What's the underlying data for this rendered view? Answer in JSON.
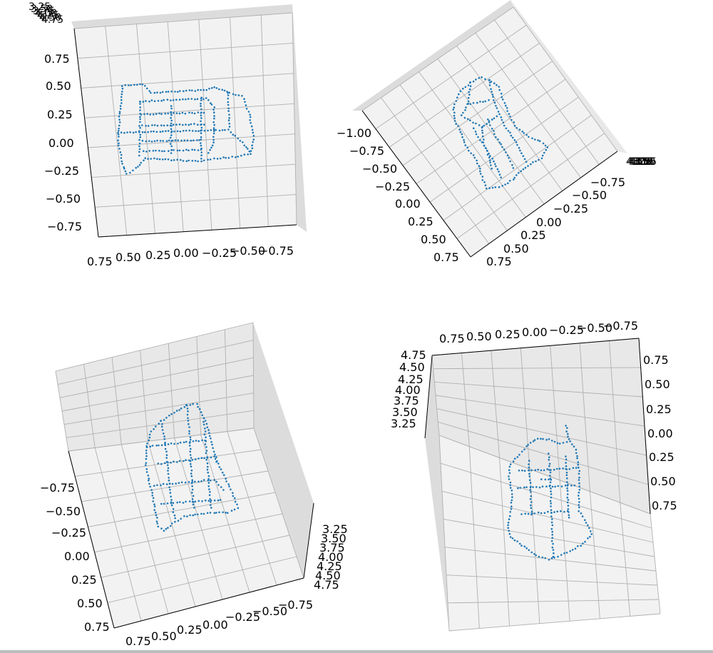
{
  "chart_data": [
    {
      "type": "scatter",
      "view": "top-left",
      "x_ticks": [
        "0.75",
        "0.50",
        "0.25",
        "0.00",
        "−0.25",
        "−0.50",
        "−0.75"
      ],
      "y_ticks": [
        "0.75",
        "0.50",
        "0.25",
        "0.00",
        "−0.25",
        "−0.50",
        "−0.75"
      ],
      "z_ticks": [
        "3.25",
        "3.50",
        "3.75",
        "4.00",
        "4.25",
        "4.50",
        "4.75"
      ],
      "grid": true,
      "color": "#1f77b4"
    },
    {
      "type": "scatter",
      "view": "top-right",
      "left_ticks": [
        "−1.00",
        "−0.75",
        "−0.50",
        "−0.25",
        "0.00",
        "0.25",
        "0.50",
        "0.75"
      ],
      "right_ticks": [
        "−0.75",
        "−0.50",
        "−0.25",
        "0.00",
        "0.25",
        "0.50",
        "0.75"
      ],
      "z_ticks": [
        "4.75",
        "4.50",
        "4.25",
        "4.00",
        "3.75",
        "3.50",
        "3.25"
      ],
      "grid": true,
      "color": "#1f77b4"
    },
    {
      "type": "scatter",
      "view": "bottom-left",
      "left_ticks": [
        "−0.75",
        "−0.50",
        "−0.25",
        "0.00",
        "0.25",
        "0.50",
        "0.75"
      ],
      "bottom_ticks": [
        "0.75",
        "0.50",
        "0.25",
        "0.00",
        "−0.25",
        "−0.50",
        "−0.75"
      ],
      "z_ticks": [
        "3.25",
        "3.50",
        "3.75",
        "4.00",
        "4.25",
        "4.50",
        "4.75"
      ],
      "grid": true,
      "color": "#1f77b4"
    },
    {
      "type": "scatter",
      "view": "bottom-right",
      "top_ticks": [
        "0.75",
        "0.50",
        "0.25",
        "0.00",
        "−0.25",
        "−0.50",
        "−0.75"
      ],
      "z_ticks": [
        "4.75",
        "4.50",
        "4.25",
        "4.00",
        "3.75",
        "3.50",
        "3.25"
      ],
      "right_ticks": [
        "0.75",
        "0.50",
        "0.25",
        "0.00",
        "0.25",
        "0.50",
        "0.75"
      ],
      "grid": true,
      "color": "#1f77b4"
    }
  ]
}
